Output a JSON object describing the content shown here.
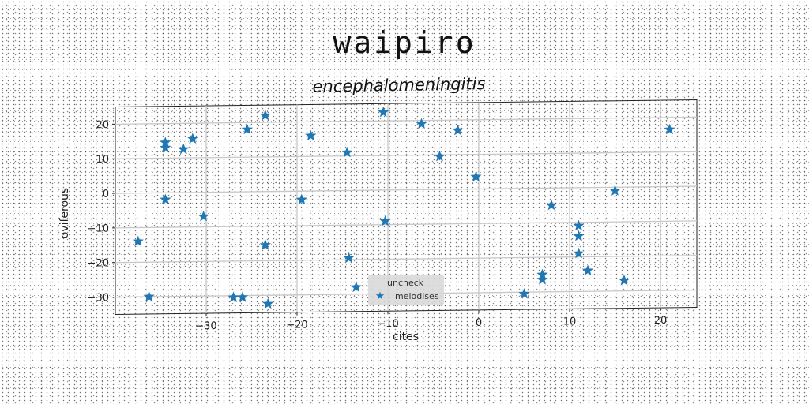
{
  "figure": {
    "suptitle": "waipiro"
  },
  "chart_data": {
    "type": "scatter",
    "title": "encephalomeningitis",
    "xlabel": "cites",
    "ylabel": "oviferous",
    "xlim": [
      -40,
      24
    ],
    "ylim": [
      -35,
      25
    ],
    "xticks": [
      -30,
      -20,
      -10,
      0,
      10,
      20
    ],
    "yticks": [
      -30,
      -20,
      -10,
      0,
      10,
      20
    ],
    "xtick_labels": [
      "−30",
      "−20",
      "−10",
      "0",
      "10",
      "20"
    ],
    "ytick_labels": [
      "−30",
      "−20",
      "−10",
      "0",
      "10",
      "20"
    ],
    "grid": true,
    "legend": {
      "title": "uncheck",
      "position": "lower-center",
      "entries": [
        "melodises"
      ]
    },
    "series": [
      {
        "name": "melodises",
        "marker": "star",
        "color": "#1f77b4",
        "points": [
          [
            -37.5,
            -14
          ],
          [
            -36.3,
            -30
          ],
          [
            -34.5,
            14.5
          ],
          [
            -34.5,
            13
          ],
          [
            -34.5,
            -2
          ],
          [
            -32.5,
            12.5
          ],
          [
            -31.5,
            15.5
          ],
          [
            -30.3,
            -7
          ],
          [
            -27,
            -30.5
          ],
          [
            -26,
            -30.5
          ],
          [
            -25.5,
            18
          ],
          [
            -23.5,
            22
          ],
          [
            -23.5,
            -15.5
          ],
          [
            -23.2,
            -32.5
          ],
          [
            -19.5,
            -2.5
          ],
          [
            -18.5,
            16
          ],
          [
            -14.5,
            11
          ],
          [
            -14.3,
            -19.5
          ],
          [
            -13.5,
            -28
          ],
          [
            -10.5,
            22.5
          ],
          [
            -10.3,
            -9
          ],
          [
            -6.3,
            19
          ],
          [
            -4.3,
            9.5
          ],
          [
            -2.3,
            17
          ],
          [
            -0.3,
            3.5
          ],
          [
            5,
            -30.5
          ],
          [
            7,
            -25
          ],
          [
            7,
            -26.5
          ],
          [
            8,
            -5
          ],
          [
            11,
            -11
          ],
          [
            11,
            -14
          ],
          [
            11,
            -19
          ],
          [
            12,
            -24
          ],
          [
            15,
            -1
          ],
          [
            16,
            -27
          ],
          [
            21,
            16.5
          ]
        ]
      }
    ]
  }
}
